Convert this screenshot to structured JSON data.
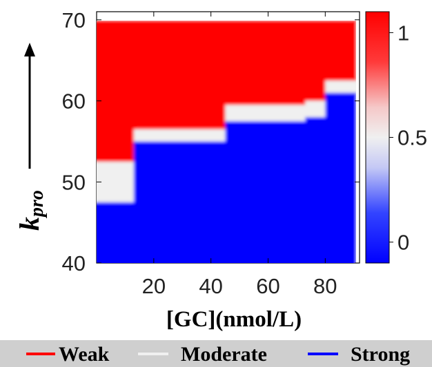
{
  "chart_data": {
    "type": "heatmap",
    "xlabel": "[GC](nmol/L)",
    "ylabel": {
      "base": "k",
      "sub": "pro"
    },
    "x_ticks": [
      20,
      40,
      60,
      80
    ],
    "y_ticks": [
      40,
      50,
      60,
      70
    ],
    "xlim": [
      0,
      92
    ],
    "ylim": [
      40,
      71
    ],
    "data_extent": {
      "x": [
        0,
        91
      ],
      "y": [
        40,
        70
      ]
    },
    "colorbar": {
      "ticks": [
        0,
        0.5,
        1
      ],
      "tick_labels": [
        "0",
        "0.5",
        "1"
      ],
      "range": [
        -0.1,
        1.1
      ]
    },
    "colormap": {
      "low": "#0000ff",
      "mid": "#f0f0f0",
      "high": "#ff0000"
    },
    "boundaries": {
      "description": "lower = top of Strong region (value 0); upper = bottom of Weak region (value 1); between = Moderate",
      "x_start": [
        0,
        13,
        45,
        73,
        80
      ],
      "lower": [
        47.5,
        55,
        57.5,
        58,
        61
      ],
      "upper": [
        52.5,
        56.5,
        59.5,
        60,
        62.5
      ]
    },
    "legend": {
      "placement": "bottom",
      "background": "#cfcfcf",
      "items": [
        {
          "label": "Weak",
          "color": "#ff0000"
        },
        {
          "label": "Moderate",
          "color": "#f0f0f0"
        },
        {
          "label": "Strong",
          "color": "#0000ff"
        }
      ]
    }
  }
}
